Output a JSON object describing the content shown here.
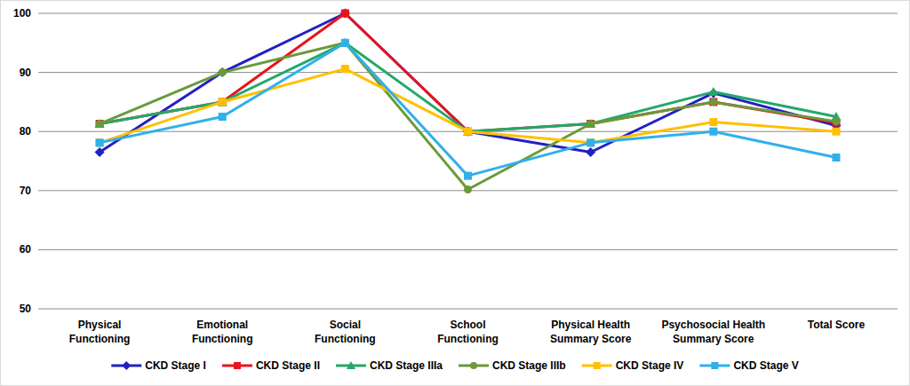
{
  "chart_data": {
    "type": "line",
    "categories": [
      "Physical Functioning",
      "Emotional Functioning",
      "Social Functioning",
      "School Functioning",
      "Physical Health Summary Score",
      "Psychosocial Health Summary Score",
      "Total Score"
    ],
    "series": [
      {
        "name": "CKD Stage I",
        "color": "#2121c4",
        "marker": "diamond",
        "values": [
          76.5,
          90,
          100,
          80,
          76.5,
          86.5,
          81
        ]
      },
      {
        "name": "CKD Stage II",
        "color": "#e8141c",
        "marker": "square",
        "values": [
          81.3,
          85,
          100,
          80,
          81.3,
          85,
          81.5
        ]
      },
      {
        "name": "CKD Stage IIIa",
        "color": "#23a86a",
        "marker": "triangle",
        "values": [
          81.3,
          85,
          95,
          80,
          81.3,
          86.7,
          82.5
        ]
      },
      {
        "name": "CKD Stage IIIb",
        "color": "#6a9a3a",
        "marker": "circle",
        "values": [
          81.3,
          90,
          95,
          70.2,
          81.3,
          85,
          81.7
        ]
      },
      {
        "name": "CKD Stage IV",
        "color": "#ffc000",
        "marker": "square",
        "values": [
          78.1,
          85,
          90.6,
          80,
          78.1,
          81.6,
          80
        ]
      },
      {
        "name": "CKD Stage V",
        "color": "#30b0ea",
        "marker": "square",
        "values": [
          78.1,
          82.5,
          95,
          72.5,
          78.1,
          80,
          75.6
        ]
      }
    ],
    "ylim": [
      50,
      100
    ],
    "yticks": [
      50,
      60,
      70,
      80,
      90,
      100
    ],
    "grid": true,
    "legend": "bottom"
  }
}
